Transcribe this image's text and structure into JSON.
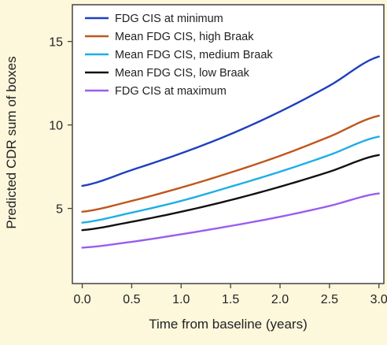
{
  "chart_data": {
    "type": "line",
    "title": "",
    "xlabel": "Time from baseline (years)",
    "ylabel": "Predicted CDR sum of boxes",
    "xlim": [
      -0.1,
      3.05
    ],
    "ylim": [
      0.5,
      17.2
    ],
    "xticks": [
      0.0,
      0.5,
      1.0,
      1.5,
      2.0,
      2.5,
      3.0
    ],
    "xtick_labels": [
      "0.0",
      "0.5",
      "1.0",
      "1.5",
      "2.0",
      "2.5",
      "3.0"
    ],
    "yticks": [
      5,
      10,
      15
    ],
    "ytick_labels": [
      "5",
      "10",
      "15"
    ],
    "grid": false,
    "legend_position": "top-left",
    "x": [
      0.0,
      0.5,
      1.0,
      1.5,
      2.0,
      2.5,
      3.0
    ],
    "series": [
      {
        "name": "FDG CIS at minimum",
        "color": "#1f3fbf",
        "values": [
          6.35,
          7.3,
          8.3,
          9.45,
          10.8,
          12.35,
          14.1
        ]
      },
      {
        "name": "Mean FDG CIS, high Braak",
        "color": "#c0561c",
        "values": [
          4.8,
          5.45,
          6.25,
          7.15,
          8.15,
          9.3,
          10.55
        ]
      },
      {
        "name": "Mean FDG CIS, medium  Braak",
        "color": "#1eaee6",
        "values": [
          4.15,
          4.75,
          5.45,
          6.3,
          7.2,
          8.2,
          9.3
        ]
      },
      {
        "name": "Mean FDG CIS, low Braak",
        "color": "#111111",
        "values": [
          3.7,
          4.2,
          4.8,
          5.5,
          6.3,
          7.2,
          8.2
        ]
      },
      {
        "name": "FDG CIS at maximum",
        "color": "#9b5cf0",
        "values": [
          2.65,
          3.0,
          3.45,
          3.95,
          4.5,
          5.15,
          5.9
        ]
      }
    ]
  }
}
